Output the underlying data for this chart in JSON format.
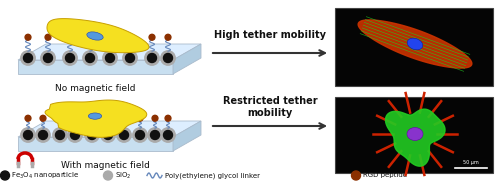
{
  "background_color": "#ffffff",
  "plate_color_top": "#c8dff0",
  "plate_color_bottom": "#c8dff0",
  "plate_edge_color": "#aabbcc",
  "cell_color": "#f5e020",
  "cell_outline": "#c8a000",
  "nucleus_color": "#5599dd",
  "label_top": "No magnetic field",
  "label_bottom": "With magnetic field",
  "arrow_text_top": "High tether mobility",
  "arrow_text_bottom": "Restricted tether\nmobility",
  "mnp_color": "#111111",
  "sio2_color": "#aaaaaa",
  "peg_color": "#6688bb",
  "rgd_color": "#8B3000",
  "magnet_color": "#cc0000",
  "arrow_color": "#333333",
  "fig_width": 5.0,
  "fig_height": 1.81,
  "legend_fe3o4": "Fe₃O₄ nanoparticle",
  "legend_sio2": "SiO₂",
  "legend_peg": "Poly(ethylene) glycol linker",
  "legend_rgd": "RGD peptide"
}
